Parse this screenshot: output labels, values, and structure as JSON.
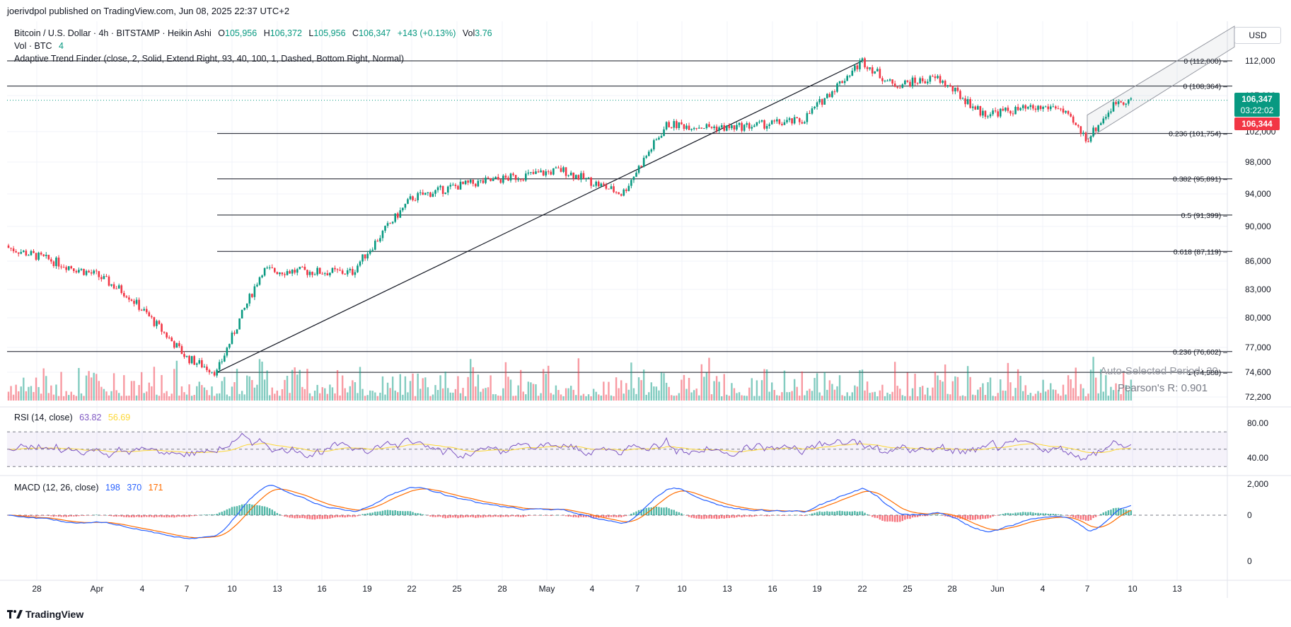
{
  "publisher_line": "joerivdpol published on TradingView.com, Jun 08, 2025 22:37 UTC+2",
  "symbol": {
    "title": "Bitcoin / U.S. Dollar · 4h · BITSTAMP · Heikin Ashi",
    "o_label": "O",
    "o_value": "105,956",
    "h_label": "H",
    "h_value": "106,372",
    "l_label": "L",
    "l_value": "105,956",
    "c_label": "C",
    "c_value": "106,347",
    "change": "+143 (+0.13%)",
    "vol_label": "Vol",
    "vol_value": "3.76"
  },
  "volume_legend": {
    "label": "Vol · BTC",
    "value": "4"
  },
  "indicator_legend": "Adaptive Trend Finder (close, 2, Solid, Extend Right, 93, 40, 100, 1, Dashed, Bottom Right, Normal)",
  "currency_button": "USD",
  "price_axis": [
    "112,000",
    "107,000",
    "102,000",
    "98,000",
    "94,000",
    "90,000",
    "86,000",
    "83,000",
    "80,000",
    "77,000",
    "74,600",
    "72,200"
  ],
  "price_tags": {
    "last_price": "106,347",
    "countdown": "03:22:02",
    "prev_price": "106,344"
  },
  "fib_levels": [
    {
      "label": "0 (112,000)",
      "price": 112000
    },
    {
      "label": "0 (108,364)",
      "price": 108364
    },
    {
      "label": "0.236 (101,754)",
      "price": 101754
    },
    {
      "label": "0.382 (95,891)",
      "price": 95891
    },
    {
      "label": "0.5 (91,399)",
      "price": 91399
    },
    {
      "label": "0.618 (87,119)",
      "price": 87119
    },
    {
      "label": "0.236 (76,602)",
      "price": 76602
    },
    {
      "label": "1 (74,588)",
      "price": 74588
    }
  ],
  "trend_stats": {
    "period": "Auto-Selected Period: 20",
    "pearson": "Pearson's R: 0.901"
  },
  "rsi": {
    "label": "RSI (14, close)",
    "value1": "63.82",
    "value2": "56.69",
    "axis": [
      "80.00",
      "40.00"
    ]
  },
  "macd": {
    "label": "MACD (12, 26, close)",
    "value1": "198",
    "value2": "370",
    "value3": "171",
    "axis": [
      "2,000",
      "0",
      "0"
    ]
  },
  "time_axis": [
    "28",
    "Apr",
    "4",
    "7",
    "10",
    "13",
    "16",
    "19",
    "22",
    "25",
    "28",
    "May",
    "4",
    "7",
    "10",
    "13",
    "16",
    "19",
    "22",
    "25",
    "28",
    "Jun",
    "4",
    "7",
    "10",
    "13"
  ],
  "brand": "TradingView",
  "colors": {
    "up": "#089981",
    "down": "#f23645",
    "rsi_line": "#7e57c2",
    "rsi_ma": "#fdd835",
    "macd_line": "#2962ff",
    "signal_line": "#ff6d00",
    "countdown_tag": "#089981",
    "prev_tag": "#f23645"
  },
  "chart_data": {
    "type": "candlestick",
    "timeframe": "4h",
    "ylim": [
      72200,
      114500
    ],
    "key_points": [
      {
        "date": "Mar 26",
        "price": 87600
      },
      {
        "date": "Apr 1",
        "price": 84500
      },
      {
        "date": "Apr 3",
        "price": 82500
      },
      {
        "date": "Apr 7",
        "price": 76000
      },
      {
        "date": "Apr 9",
        "price": 74588
      },
      {
        "date": "Apr 12",
        "price": 85000
      },
      {
        "date": "Apr 18",
        "price": 84800
      },
      {
        "date": "Apr 22",
        "price": 93500
      },
      {
        "date": "Apr 25",
        "price": 95000
      },
      {
        "date": "May 2",
        "price": 97000
      },
      {
        "date": "May 6",
        "price": 94000
      },
      {
        "date": "May 9",
        "price": 103000
      },
      {
        "date": "May 13",
        "price": 102500
      },
      {
        "date": "May 18",
        "price": 103500
      },
      {
        "date": "May 22",
        "price": 112000
      },
      {
        "date": "May 24",
        "price": 108500
      },
      {
        "date": "May 27",
        "price": 109500
      },
      {
        "date": "May 30",
        "price": 104500
      },
      {
        "date": "Jun 4",
        "price": 105500
      },
      {
        "date": "Jun 6",
        "price": 101000
      },
      {
        "date": "Jun 8",
        "price": 106347
      }
    ]
  }
}
